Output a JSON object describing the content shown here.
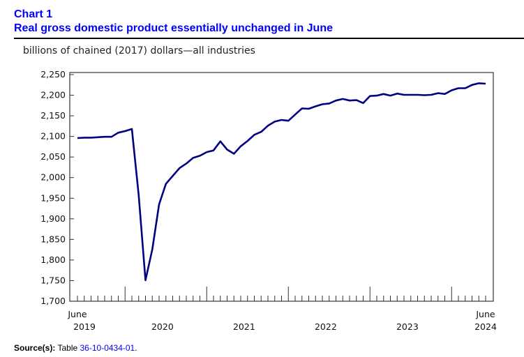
{
  "title": {
    "number": "Chart 1",
    "text": "Real gross domestic product essentially unchanged in June"
  },
  "source": {
    "label": "Source(s):",
    "prefix": "Table",
    "link": "36-10-0434-01",
    "suffix": "."
  },
  "chart_data": {
    "type": "line",
    "title": "Real gross domestic product essentially unchanged in June",
    "ylabel": "billions of chained (2017) dollars—all industries",
    "xlabel": "",
    "ylim": [
      1700,
      2250
    ],
    "yticks": [
      1700,
      1750,
      1800,
      1850,
      1900,
      1950,
      2000,
      2050,
      2100,
      2150,
      2200,
      2250
    ],
    "ytick_labels": [
      "1,700",
      "1,750",
      "1,800",
      "1,850",
      "1,900",
      "1,950",
      "2,000",
      "2,050",
      "2,100",
      "2,150",
      "2,200",
      "2,250"
    ],
    "x_start": "June 2019",
    "x_end": "June 2024",
    "x_labels": [
      {
        "month": "June",
        "year": "2019"
      },
      {
        "month": "",
        "year": "2020"
      },
      {
        "month": "",
        "year": "2021"
      },
      {
        "month": "",
        "year": "2022"
      },
      {
        "month": "",
        "year": "2023"
      },
      {
        "month": "June",
        "year": "2024"
      }
    ],
    "line_color": "#000080",
    "grid": false,
    "series": [
      {
        "name": "Real GDP",
        "values": [
          2096,
          2097,
          2097,
          2098,
          2099,
          2099,
          2109,
          2113,
          2118,
          1957,
          1751,
          1826,
          1935,
          1985,
          2004,
          2023,
          2034,
          2048,
          2053,
          2062,
          2066,
          2088,
          2068,
          2058,
          2076,
          2089,
          2104,
          2111,
          2126,
          2136,
          2140,
          2138,
          2153,
          2168,
          2167,
          2173,
          2178,
          2180,
          2187,
          2191,
          2187,
          2188,
          2181,
          2198,
          2199,
          2203,
          2199,
          2204,
          2201,
          2201,
          2201,
          2200,
          2201,
          2205,
          2203,
          2212,
          2217,
          2217,
          2225,
          2229,
          2228
        ]
      }
    ]
  }
}
